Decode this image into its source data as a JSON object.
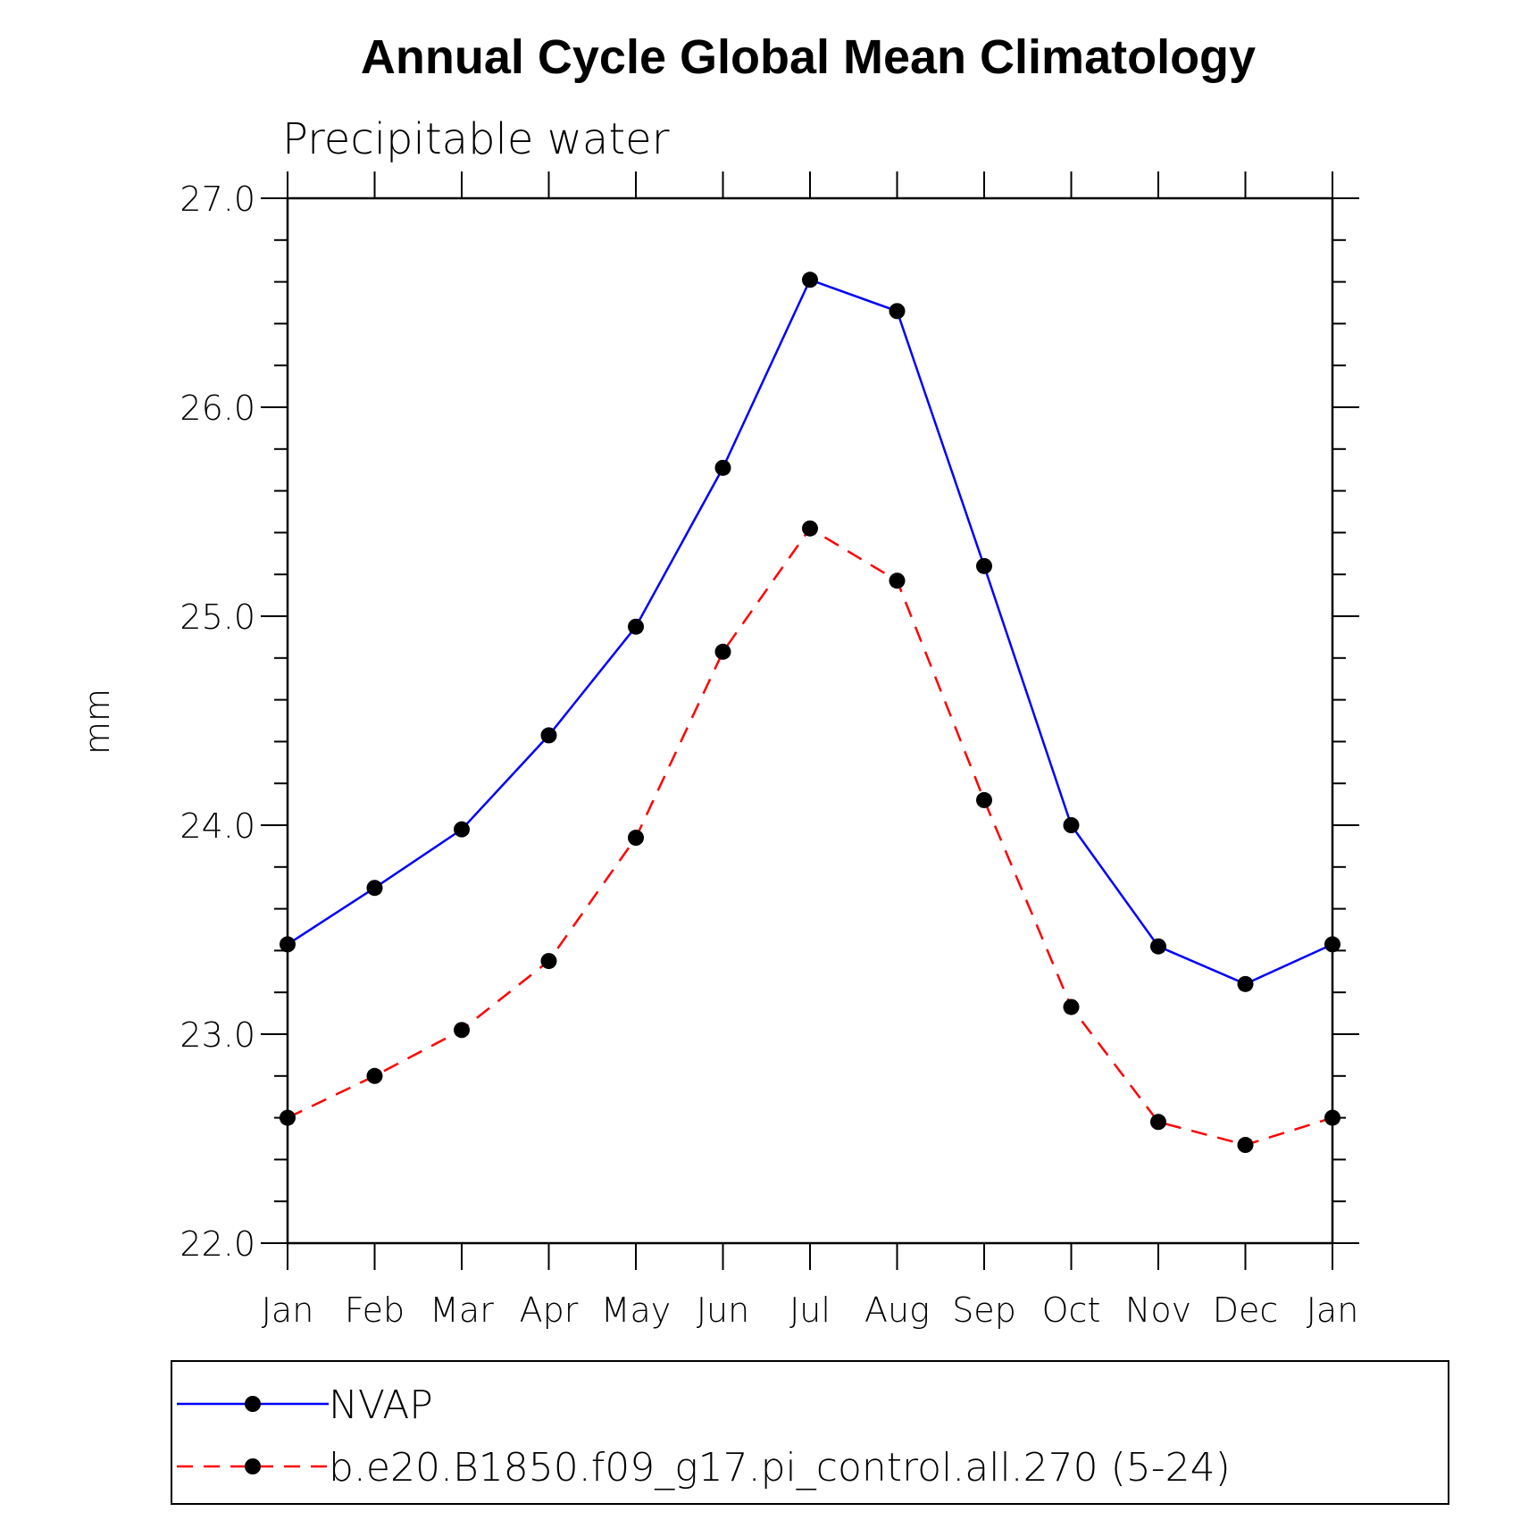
{
  "chart_data": {
    "type": "line",
    "title": "Annual Cycle Global Mean Climatology",
    "subtitle": "Precipitable water",
    "xlabel": "",
    "ylabel": "mm",
    "categories": [
      "Jan",
      "Feb",
      "Mar",
      "Apr",
      "May",
      "Jun",
      "Jul",
      "Aug",
      "Sep",
      "Oct",
      "Nov",
      "Dec",
      "Jan"
    ],
    "ylim": [
      22.0,
      27.0
    ],
    "yticks": [
      "22.0",
      "23.0",
      "24.0",
      "25.0",
      "26.0",
      "27.0"
    ],
    "grid": false,
    "legend_position": "bottom",
    "series": [
      {
        "name": "NVAP",
        "color": "#0000ff",
        "style": "solid",
        "marker": "filled-circle",
        "values": [
          23.43,
          23.7,
          23.98,
          24.43,
          24.95,
          25.71,
          26.61,
          26.46,
          25.24,
          24.0,
          23.42,
          23.24,
          23.43
        ]
      },
      {
        "name": "b.e20.B1850.f09_g17.pi_control.all.270 (5-24)",
        "color": "#ff0000",
        "style": "dashed",
        "marker": "filled-circle",
        "values": [
          22.6,
          22.8,
          23.02,
          23.35,
          23.94,
          24.83,
          25.42,
          25.17,
          24.12,
          23.13,
          22.58,
          22.47,
          22.6
        ]
      }
    ]
  }
}
